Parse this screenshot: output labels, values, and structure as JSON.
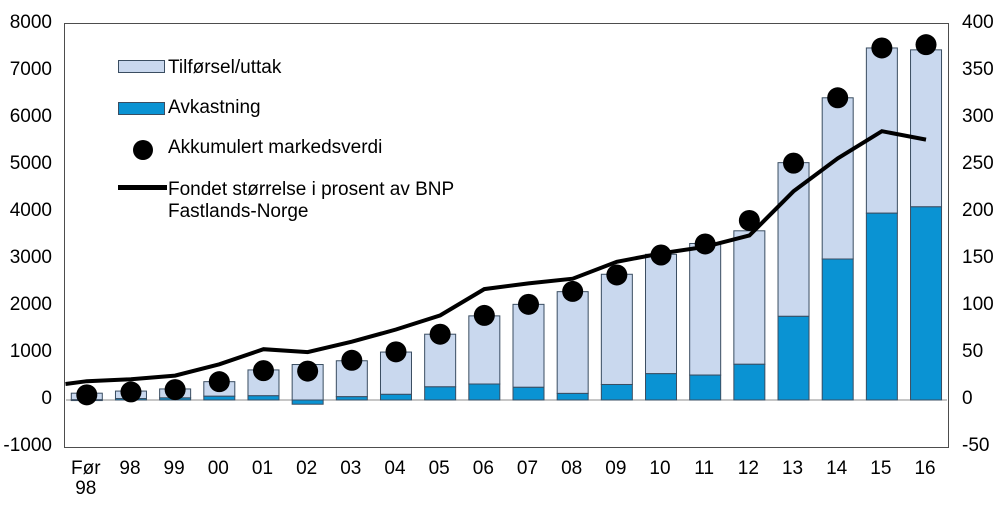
{
  "legend": {
    "tilforsel": "Tilførsel/uttak",
    "avkastning": "Avkastning",
    "markedsverdi": "Akkumulert markedsverdi",
    "bnp": "Fondet størrelse i prosent av BNP Fastlands-Norge"
  },
  "colors": {
    "tilforsel": "#c9d8ee",
    "avkastning": "#0a93d3",
    "bar_border": "#3a4d61",
    "dot": "#000000",
    "line": "#000000",
    "frame": "#4d4d4d",
    "zero_line": "#8c8c8c"
  },
  "chart_data": {
    "type": "bar",
    "subtype": "stacked bars + scatter dots (left axis) + line (right axis)",
    "title": "",
    "xlabel": "",
    "ylabel": "",
    "categories": [
      "Før 98",
      "98",
      "99",
      "00",
      "01",
      "02",
      "03",
      "04",
      "05",
      "06",
      "07",
      "08",
      "09",
      "10",
      "11",
      "12",
      "13",
      "14",
      "15",
      "16"
    ],
    "series": [
      {
        "name": "Avkastning",
        "role": "bar-segment-bottom",
        "axis": "left",
        "values": [
          5,
          30,
          45,
          80,
          90,
          -90,
          70,
          120,
          280,
          340,
          270,
          140,
          330,
          560,
          530,
          760,
          1780,
          3000,
          3975,
          4110
        ]
      },
      {
        "name": "Tilførsel/uttak",
        "role": "bar-segment-top",
        "axis": "left",
        "values": [
          140,
          160,
          190,
          310,
          550,
          755,
          765,
          900,
          1120,
          1450,
          1765,
          2165,
          2345,
          2540,
          2800,
          2840,
          3270,
          3430,
          3515,
          3340
        ]
      },
      {
        "name": "Akkumulert markedsverdi",
        "role": "dots",
        "axis": "left",
        "values": [
          110,
          172,
          222,
          390,
          625,
          615,
          845,
          1025,
          1400,
          1800,
          2035,
          2310,
          2660,
          3085,
          3320,
          3820,
          5040,
          6430,
          7490,
          7560
        ]
      },
      {
        "name": "Fondet størrelse i prosent av BNP Fastlands-Norge",
        "role": "line",
        "axis": "right",
        "values": [
          20,
          22,
          26,
          38,
          54,
          51,
          62,
          75,
          90,
          118,
          124,
          129,
          147,
          156,
          163,
          175,
          222,
          257,
          286,
          277
        ],
        "start_value_at_left_frame": 17
      }
    ],
    "left_axis": {
      "min": -1000,
      "max": 8000,
      "ticks": [
        8000,
        7000,
        6000,
        5000,
        4000,
        3000,
        2000,
        1000,
        0,
        -1000
      ]
    },
    "right_axis": {
      "min": -50,
      "max": 400,
      "ticks": [
        400,
        350,
        300,
        250,
        200,
        150,
        100,
        50,
        0,
        -50
      ]
    },
    "grid": "none, zero baseline only",
    "legend_position": "top-left inside plot area"
  }
}
